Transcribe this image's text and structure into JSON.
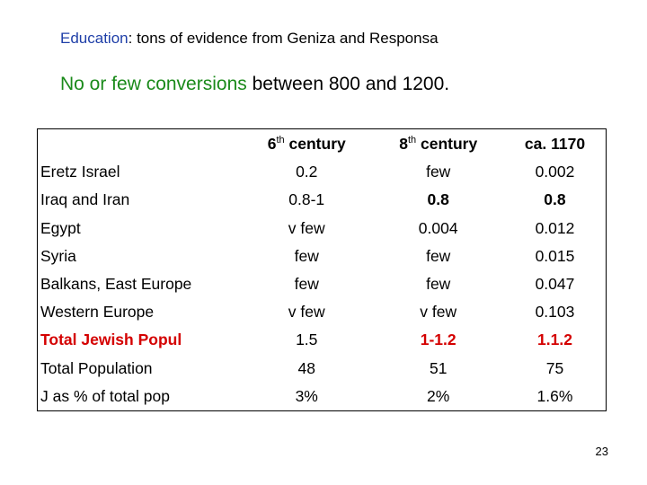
{
  "slide": {
    "title_prefix": "Education",
    "title_rest": ": tons of evidence from Geniza and Responsa",
    "subtitle_prefix": "No or few conversions",
    "subtitle_rest": " between 800 and 1200.",
    "page_number": "23"
  },
  "table": {
    "columns": [
      {
        "num": "6",
        "sup": "th",
        "label": " century"
      },
      {
        "num": "8",
        "sup": "th",
        "label": " century"
      },
      {
        "num": "ca. 1170",
        "sup": "",
        "label": ""
      }
    ],
    "rows": [
      {
        "label": "Eretz Israel",
        "values": [
          "0.2",
          "few",
          "0.002"
        ]
      },
      {
        "label": "Iraq and Iran",
        "values": [
          "0.8-1",
          "0.8",
          "0.8"
        ]
      },
      {
        "label": "Egypt",
        "values": [
          "v few",
          "0.004",
          "0.012"
        ]
      },
      {
        "label": "Syria",
        "values": [
          "few",
          "few",
          "0.015"
        ]
      },
      {
        "label": "Balkans, East Europe",
        "values": [
          "few",
          "few",
          "0.047"
        ]
      },
      {
        "label": "Western Europe",
        "values": [
          "v few",
          "v few",
          "0.103"
        ]
      },
      {
        "label": "Total Jewish Popul",
        "values": [
          "1.5",
          "1-1.2",
          "1.1.2"
        ]
      },
      {
        "label": "Total Population",
        "values": [
          "48",
          "51",
          "75"
        ]
      },
      {
        "label": "J as % of total pop",
        "values": [
          "3%",
          "2%",
          "1.6%"
        ]
      }
    ]
  },
  "colors": {
    "title_accent": "#1f3fa8",
    "subtitle_accent": "#1a8a1a",
    "total_row": "#d40000"
  }
}
